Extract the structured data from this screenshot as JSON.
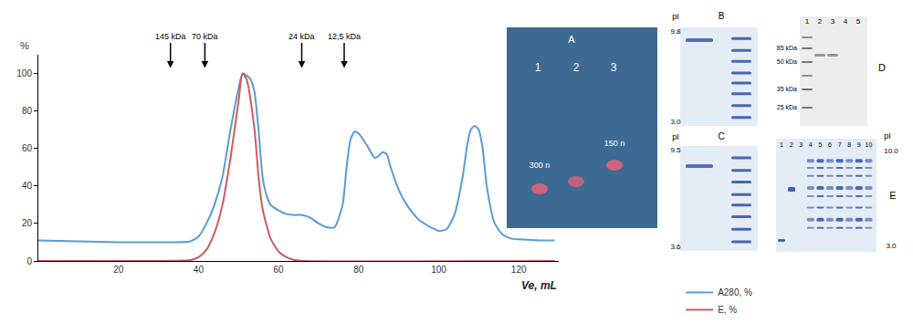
{
  "chart_data": {
    "type": "line",
    "xlabel": "Ve, mL",
    "ylabel": "%",
    "xlim": [
      0,
      130
    ],
    "ylim": [
      0,
      110
    ],
    "xticks": [
      20,
      40,
      60,
      80,
      100,
      120
    ],
    "yticks": [
      0,
      20,
      40,
      60,
      80,
      100
    ],
    "grid": false,
    "legend": "bottom-right",
    "annotations": [
      {
        "text": "145 kDa",
        "x": 33,
        "y": 103
      },
      {
        "text": "70 kDa",
        "x": 41.6,
        "y": 103
      },
      {
        "text": "24 kDa",
        "x": 65.8,
        "y": 103
      },
      {
        "text": "12,5 kDa",
        "x": 76.4,
        "y": 103
      }
    ],
    "series": [
      {
        "name": "A280, %",
        "color": "#5b9bd5",
        "x": [
          0,
          10,
          20,
          30,
          38,
          40,
          42,
          44,
          46,
          48,
          50,
          51,
          52,
          53,
          54,
          55,
          56,
          57,
          58,
          60,
          62,
          64,
          66,
          68,
          70,
          72,
          74,
          76,
          77,
          78,
          79,
          80,
          82,
          84,
          85,
          86,
          87,
          88,
          90,
          92,
          95,
          98,
          100,
          102,
          104,
          106,
          107,
          108,
          109,
          110,
          111,
          112,
          114,
          116,
          118,
          120,
          125,
          129
        ],
        "values": [
          11,
          10.5,
          10,
          10,
          10.5,
          13,
          20,
          30,
          45,
          70,
          92,
          100,
          99,
          97,
          90,
          70,
          45,
          35,
          30,
          27,
          25,
          24.5,
          24.5,
          23,
          20,
          18,
          18,
          30,
          50,
          65,
          69,
          68,
          62,
          55,
          56,
          58,
          57,
          50,
          38,
          30,
          22,
          18,
          16,
          17,
          25,
          45,
          60,
          70,
          72,
          70,
          60,
          40,
          20,
          14,
          12,
          11.5,
          11,
          11
        ]
      },
      {
        "name": "E, %",
        "color": "#cd5c5c",
        "x": [
          0,
          30,
          38,
          40,
          42,
          44,
          46,
          48,
          50,
          51,
          52,
          54,
          55,
          56,
          58,
          60,
          62,
          64,
          66,
          129
        ],
        "values": [
          0,
          0,
          0.5,
          2,
          6,
          15,
          30,
          55,
          85,
          100,
          97,
          70,
          45,
          28,
          12,
          5,
          2,
          0.5,
          0,
          0
        ]
      }
    ]
  },
  "gel_panels": [
    {
      "label": "A",
      "lanes": [
        "1",
        "2",
        "3"
      ],
      "band_labels": [
        "300 n",
        "150 n"
      ]
    },
    {
      "label": "B",
      "axis_title": "pI",
      "marks": [
        "9.8",
        "3.0"
      ]
    },
    {
      "label": "C",
      "axis_title": "pI",
      "marks": [
        "9.5",
        "3.6"
      ]
    },
    {
      "label": "D",
      "lanes": [
        "1",
        "2",
        "3",
        "4",
        "5"
      ],
      "marks": [
        "85 kDa",
        "50 kDa",
        "35 kDa",
        "25 kDa"
      ]
    },
    {
      "label": "E",
      "lanes": [
        "1",
        "2",
        "3",
        "4",
        "5",
        "6",
        "7",
        "8",
        "9",
        "10"
      ],
      "axis_title": "pI",
      "marks": [
        "10.0",
        "3.0"
      ]
    }
  ]
}
